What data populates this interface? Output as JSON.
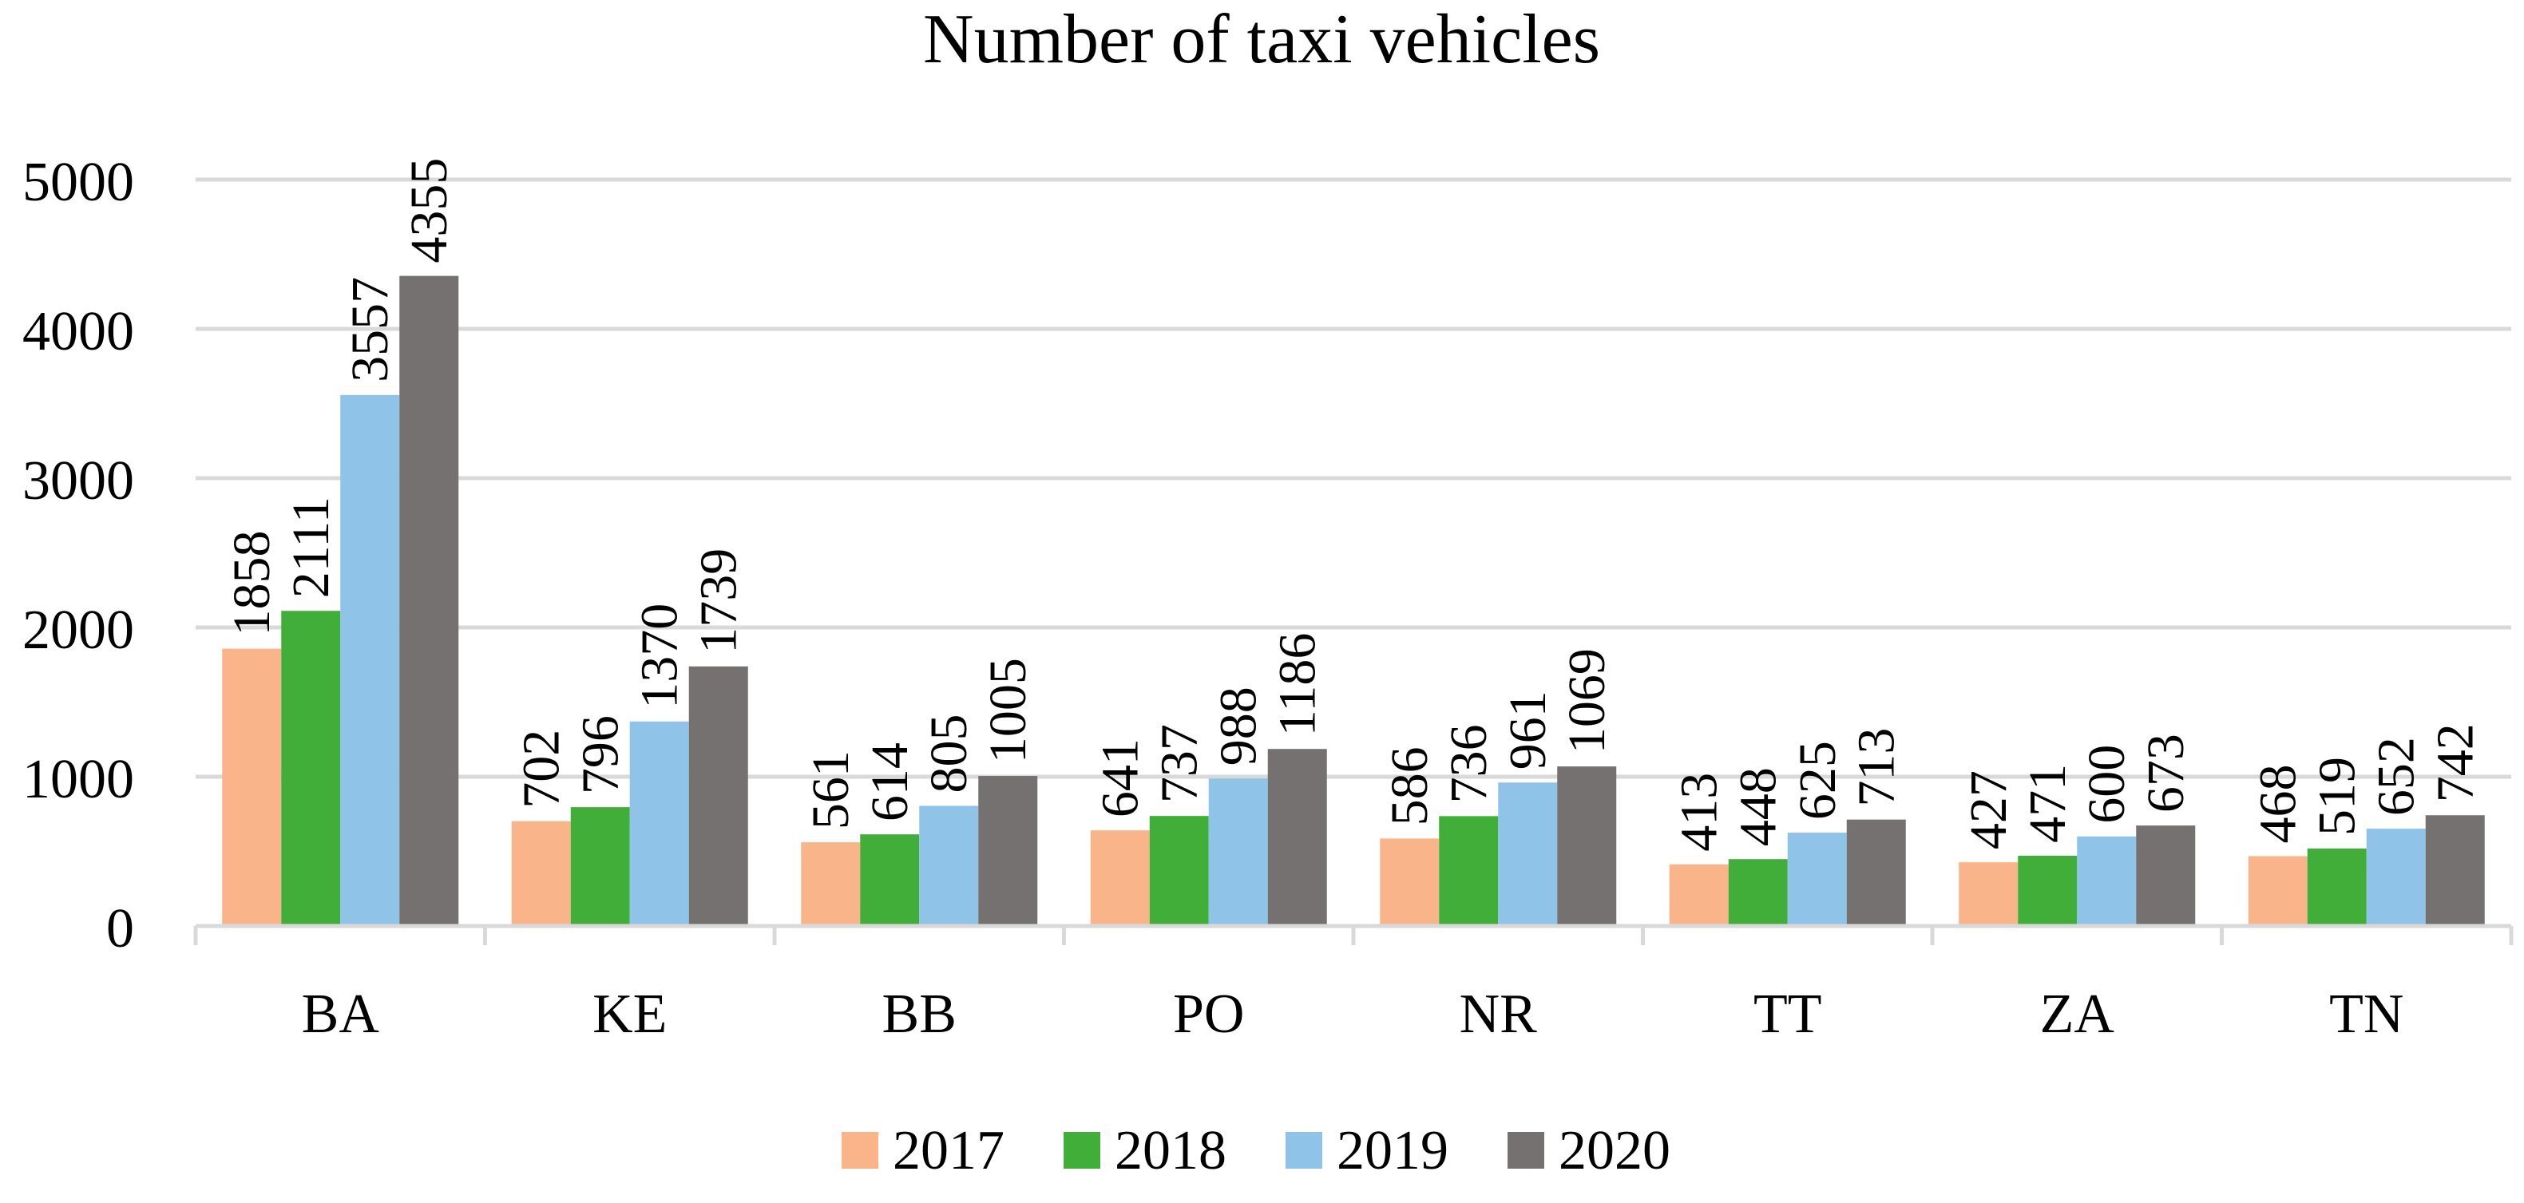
{
  "chart_data": {
    "type": "bar",
    "title": "Number of taxi vehicles",
    "xlabel": "",
    "ylabel": "",
    "categories": [
      "BA",
      "KE",
      "BB",
      "PO",
      "NR",
      "TT",
      "ZA",
      "TN"
    ],
    "series": [
      {
        "name": "2017",
        "color": "#F9B589",
        "values": [
          1858,
          702,
          561,
          641,
          586,
          413,
          427,
          468
        ]
      },
      {
        "name": "2018",
        "color": "#41AE3A",
        "values": [
          2111,
          796,
          614,
          737,
          736,
          448,
          471,
          519
        ]
      },
      {
        "name": "2019",
        "color": "#8FC4E8",
        "values": [
          3557,
          1370,
          805,
          988,
          961,
          625,
          600,
          652
        ]
      },
      {
        "name": "2020",
        "color": "#767171",
        "values": [
          4355,
          1739,
          1005,
          1186,
          1069,
          713,
          673,
          742
        ]
      }
    ],
    "ylim": [
      0,
      5000
    ],
    "yticks": [
      0,
      1000,
      2000,
      3000,
      4000,
      5000
    ],
    "grid": true,
    "data_labels": true,
    "legend_position": "bottom-center"
  }
}
